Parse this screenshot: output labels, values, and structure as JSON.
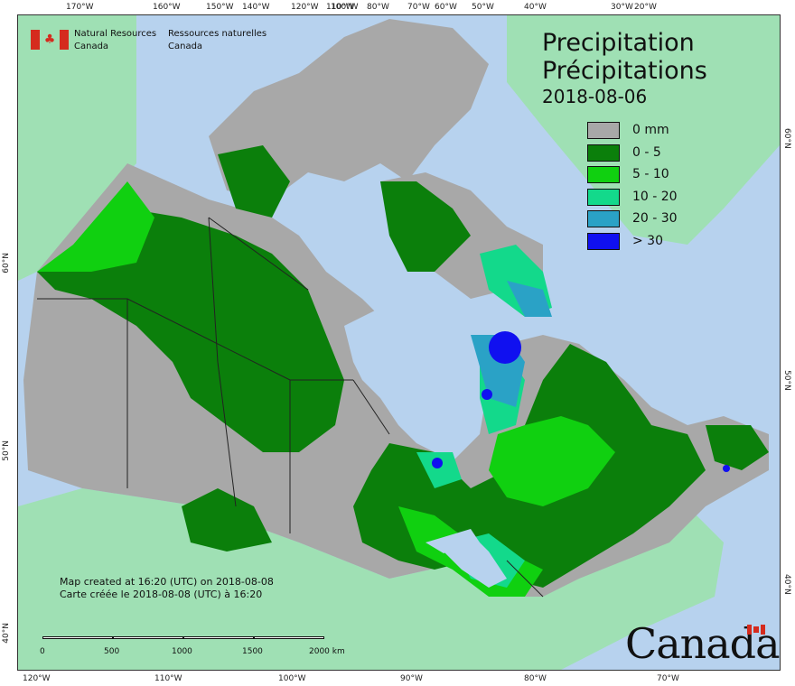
{
  "colors": {
    "ocean": "#b7d2ee",
    "land_outside": "#9fe0b4",
    "no_precip": "#a8a8a8",
    "p_0_5": "#0b7f0b",
    "p_5_10": "#10d010",
    "p_10_20": "#13d98b",
    "p_20_30": "#2aa2c6",
    "p_30_plus": "#1010f0",
    "boundary": "#222222",
    "water": "#b7d2ee"
  },
  "header": {
    "agency_en_line1": "Natural Resources",
    "agency_en_line2": "Canada",
    "agency_fr_line1": "Ressources naturelles",
    "agency_fr_line2": "Canada"
  },
  "title": {
    "line_en": "Precipitation",
    "line_fr": "Précipitations",
    "date": "2018-08-06"
  },
  "legend": [
    {
      "label": "0 mm",
      "color": "#a8a8a8"
    },
    {
      "label": "0 - 5",
      "color": "#0b7f0b"
    },
    {
      "label": "5 - 10",
      "color": "#10d010"
    },
    {
      "label": "10 - 20",
      "color": "#13d98b"
    },
    {
      "label": "20 - 30",
      "color": "#2aa2c6"
    },
    {
      "label": "> 30",
      "color": "#1010f0"
    }
  ],
  "ticks": {
    "top": [
      "170°W",
      "160°W",
      "150°W",
      "140°W",
      "120°W",
      "110°W",
      "100°W",
      "80°W",
      "70°W",
      "60°W",
      "50°W",
      "40°W",
      "30°W",
      "20°W"
    ],
    "bottom": [
      "120°W",
      "110°W",
      "100°W",
      "90°W",
      "80°W",
      "70°W"
    ],
    "left": [
      "60°N",
      "50°N",
      "40°N"
    ],
    "right": [
      "60°N",
      "50°N",
      "40°N"
    ]
  },
  "footer": {
    "created_en": "Map created at 16:20 (UTC) on 2018-08-08",
    "created_fr": "Carte créée le 2018-08-08 (UTC) à 16:20"
  },
  "scale": {
    "labels": [
      "0",
      "500",
      "1000",
      "1500",
      "2000 km"
    ]
  },
  "wordmark": "Canada"
}
